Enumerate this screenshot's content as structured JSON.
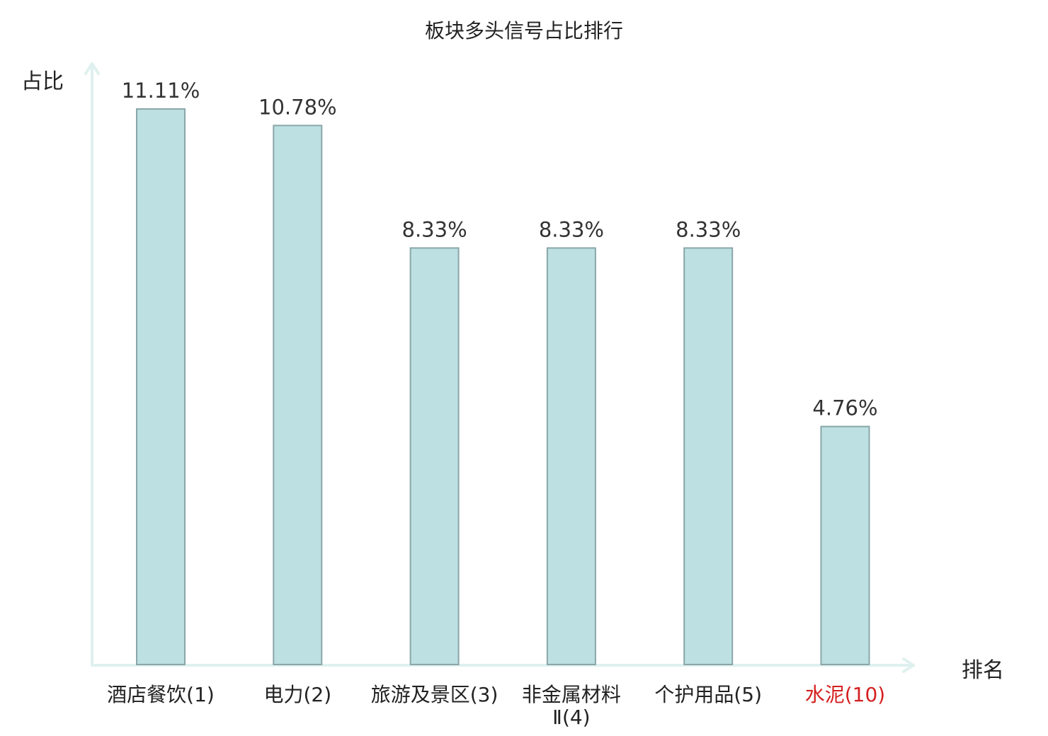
{
  "chart_data": {
    "type": "bar",
    "title": "板块多头信号占比排行",
    "ylabel": "占比",
    "xlabel": "排名",
    "categories": [
      "酒店餐饮(1)",
      "电力(2)",
      "旅游及景区(3)",
      "非金属材料Ⅱ(4)",
      "个护用品(5)",
      "水泥(10)"
    ],
    "values": [
      11.11,
      10.78,
      8.33,
      8.33,
      8.33,
      4.76
    ],
    "value_labels": [
      "11.11%",
      "10.78%",
      "8.33%",
      "8.33%",
      "8.33%",
      "4.76%"
    ],
    "highlight_index": 5,
    "ylim": [
      0,
      12
    ],
    "grid": false,
    "legend": "none",
    "colors": {
      "bar_fill": "#bde0e2",
      "bar_stroke": "#8aa6a9",
      "axis": "#dff1ef",
      "highlight_text": "#d42020"
    }
  }
}
